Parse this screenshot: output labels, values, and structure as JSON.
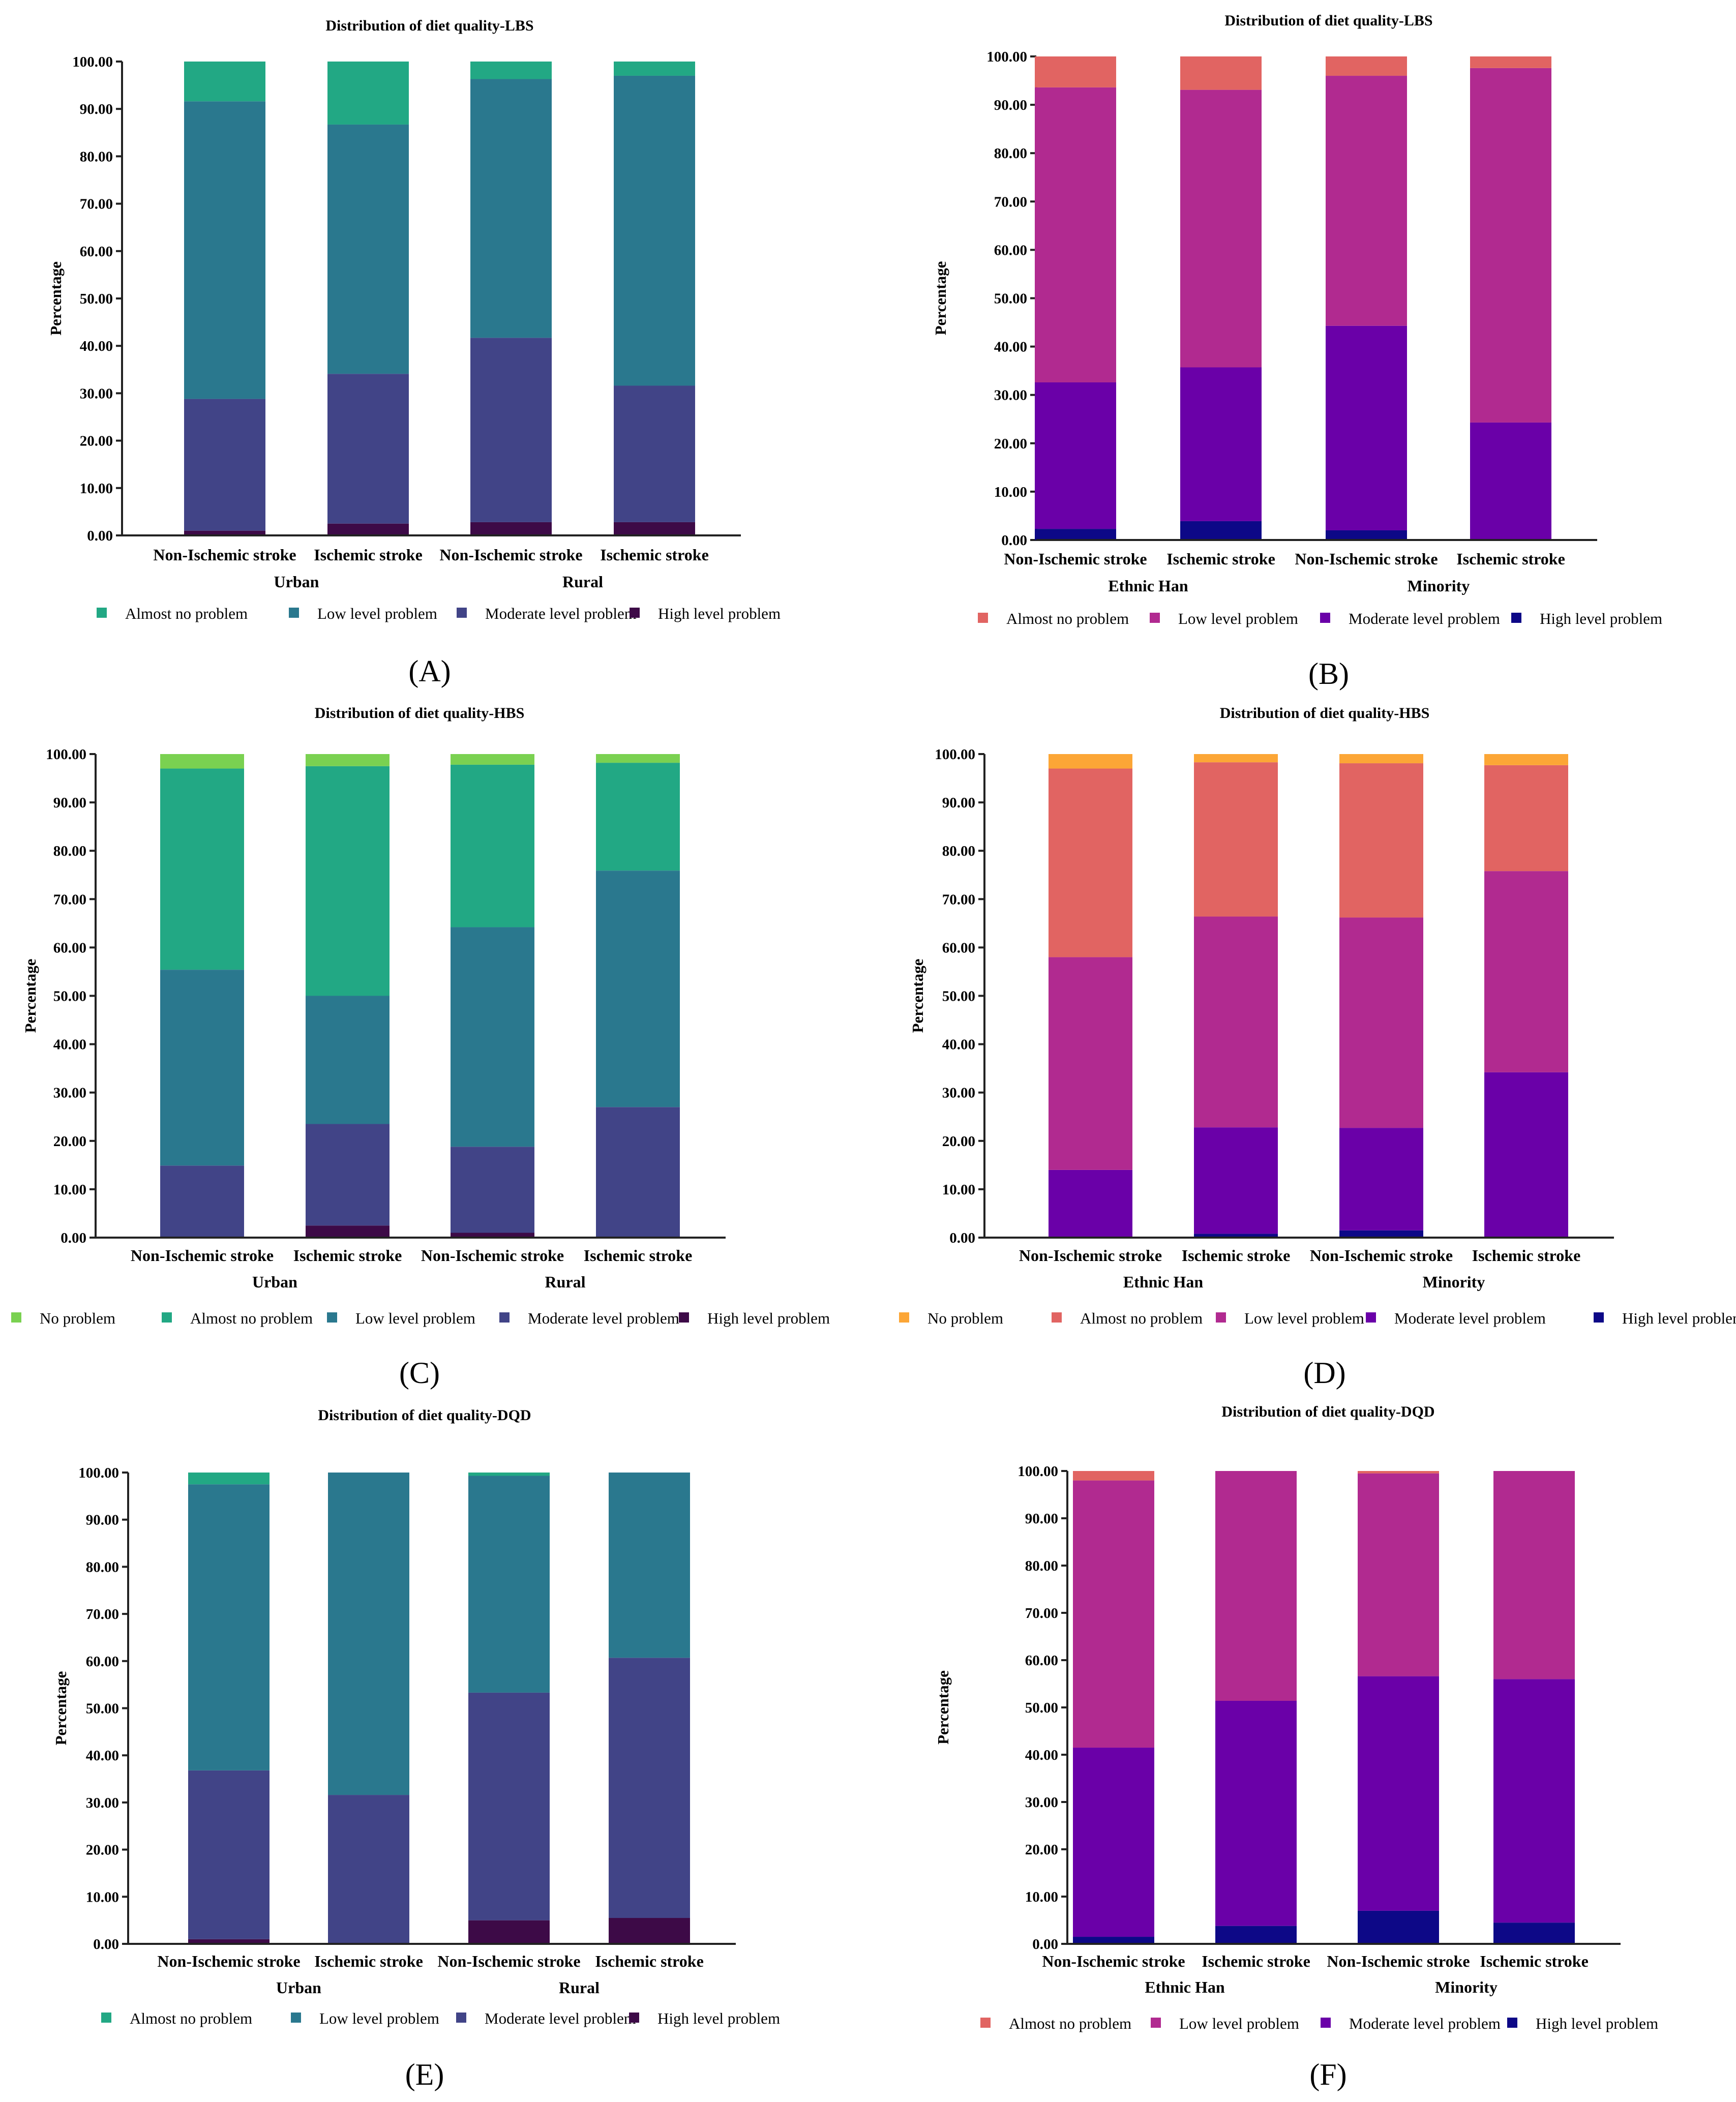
{
  "figure": {
    "name": "diet-quality-distribution"
  },
  "chart_data": [
    {
      "panel": "A",
      "type": "bar",
      "stacked": true,
      "title": "Distribution of diet quality-LBS",
      "ylabel": "Percentage",
      "xlabel": "",
      "ylim": [
        0,
        100
      ],
      "yticks": [
        "0.00",
        "10.00",
        "20.00",
        "30.00",
        "40.00",
        "50.00",
        "60.00",
        "70.00",
        "80.00",
        "90.00",
        "100.00"
      ],
      "categories": [
        "Non-Ischemic stroke",
        "Ischemic stroke",
        "Non-Ischemic stroke",
        "Ischemic stroke"
      ],
      "groups": [
        "Urban",
        "Rural"
      ],
      "series": [
        {
          "name": "High level problem",
          "color": "#3d0a47",
          "values": [
            1.0,
            2.5,
            2.8,
            2.8
          ]
        },
        {
          "name": "Moderate level problem",
          "color": "#414487",
          "values": [
            27.8,
            31.6,
            38.9,
            28.8
          ]
        },
        {
          "name": "Low level problem",
          "color": "#2a788e",
          "values": [
            62.8,
            52.6,
            54.6,
            65.4
          ]
        },
        {
          "name": "Almost no problem",
          "color": "#22a884",
          "values": [
            8.4,
            13.3,
            3.7,
            3.0
          ]
        }
      ]
    },
    {
      "panel": "B",
      "type": "bar",
      "stacked": true,
      "title": "Distribution of diet quality-LBS",
      "ylabel": "Percentage",
      "xlabel": "",
      "ylim": [
        0,
        100
      ],
      "yticks": [
        "0.00",
        "10.00",
        "20.00",
        "30.00",
        "40.00",
        "50.00",
        "60.00",
        "70.00",
        "80.00",
        "90.00",
        "100.00"
      ],
      "categories": [
        "Non-Ischemic stroke",
        "Ischemic stroke",
        "Non-Ischemic stroke",
        "Ischemic stroke"
      ],
      "groups": [
        "Ethnic Han",
        "Minority"
      ],
      "series": [
        {
          "name": "High level problem",
          "color": "#0d0887",
          "values": [
            2.3,
            3.9,
            2.0,
            0.0
          ]
        },
        {
          "name": "Moderate level problem",
          "color": "#6a00a8",
          "values": [
            30.3,
            31.8,
            42.3,
            24.3
          ]
        },
        {
          "name": "Low level problem",
          "color": "#b12a90",
          "values": [
            61.0,
            57.4,
            51.7,
            73.3
          ]
        },
        {
          "name": "Almost no problem",
          "color": "#e16462",
          "values": [
            6.4,
            6.9,
            4.0,
            2.4
          ]
        }
      ]
    },
    {
      "panel": "C",
      "type": "bar",
      "stacked": true,
      "title": "Distribution of diet quality-HBS",
      "ylabel": "Percentage",
      "xlabel": "",
      "ylim": [
        0,
        100
      ],
      "yticks": [
        "0.00",
        "10.00",
        "20.00",
        "30.00",
        "40.00",
        "50.00",
        "60.00",
        "70.00",
        "80.00",
        "90.00",
        "100.00"
      ],
      "categories": [
        "Non-Ischemic stroke",
        "Ischemic stroke",
        "Non-Ischemic stroke",
        "Ischemic stroke"
      ],
      "groups": [
        "Urban",
        "Rural"
      ],
      "series": [
        {
          "name": "High level problem",
          "color": "#3d0a47",
          "values": [
            0.0,
            2.5,
            1.0,
            0.0
          ]
        },
        {
          "name": "Moderate level problem",
          "color": "#414487",
          "values": [
            14.9,
            21.0,
            17.8,
            27.0
          ]
        },
        {
          "name": "Low level problem",
          "color": "#2a788e",
          "values": [
            40.5,
            26.5,
            45.4,
            48.9
          ]
        },
        {
          "name": "Almost no problem",
          "color": "#22a884",
          "values": [
            41.6,
            47.5,
            33.6,
            22.3
          ]
        },
        {
          "name": "No problem",
          "color": "#7ad151",
          "values": [
            3.0,
            2.5,
            2.2,
            1.8
          ]
        }
      ]
    },
    {
      "panel": "D",
      "type": "bar",
      "stacked": true,
      "title": "Distribution of diet quality-HBS",
      "ylabel": "Percentage",
      "xlabel": "",
      "ylim": [
        0,
        100
      ],
      "yticks": [
        "0.00",
        "10.00",
        "20.00",
        "30.00",
        "40.00",
        "50.00",
        "60.00",
        "70.00",
        "80.00",
        "90.00",
        "100.00"
      ],
      "categories": [
        "Non-Ischemic stroke",
        "Ischemic stroke",
        "Non-Ischemic stroke",
        "Ischemic stroke"
      ],
      "groups": [
        "Ethnic Han",
        "Minority"
      ],
      "series": [
        {
          "name": "High level problem",
          "color": "#0d0887",
          "values": [
            0.0,
            0.8,
            1.5,
            0.0
          ]
        },
        {
          "name": "Moderate level problem",
          "color": "#6a00a8",
          "values": [
            14.0,
            22.0,
            21.2,
            34.2
          ]
        },
        {
          "name": "Low level problem",
          "color": "#b12a90",
          "values": [
            44.0,
            43.6,
            43.5,
            41.6
          ]
        },
        {
          "name": "Almost no problem",
          "color": "#e16462",
          "values": [
            39.0,
            31.9,
            31.9,
            21.9
          ]
        },
        {
          "name": "No problem",
          "color": "#fca636",
          "values": [
            3.0,
            1.7,
            1.9,
            2.3
          ]
        }
      ]
    },
    {
      "panel": "E",
      "type": "bar",
      "stacked": true,
      "title": "Distribution of diet quality-DQD",
      "ylabel": "Percentage",
      "xlabel": "",
      "ylim": [
        0,
        100
      ],
      "yticks": [
        "0.00",
        "10.00",
        "20.00",
        "30.00",
        "40.00",
        "50.00",
        "60.00",
        "70.00",
        "80.00",
        "90.00",
        "100.00"
      ],
      "categories": [
        "Non-Ischemic stroke",
        "Ischemic stroke",
        "Non-Ischemic stroke",
        "Ischemic stroke"
      ],
      "groups": [
        "Urban",
        "Rural"
      ],
      "series": [
        {
          "name": "High level problem",
          "color": "#3d0a47",
          "values": [
            1.0,
            0.0,
            5.0,
            5.5
          ]
        },
        {
          "name": "Moderate level problem",
          "color": "#414487",
          "values": [
            35.8,
            31.6,
            48.3,
            55.2
          ]
        },
        {
          "name": "Low level problem",
          "color": "#2a788e",
          "values": [
            60.7,
            68.4,
            46.0,
            39.3
          ]
        },
        {
          "name": "Almost no problem",
          "color": "#22a884",
          "values": [
            2.5,
            0.0,
            0.7,
            0.0
          ]
        }
      ]
    },
    {
      "panel": "F",
      "type": "bar",
      "stacked": true,
      "title": "Distribution of diet quality-DQD",
      "ylabel": "Percentage",
      "xlabel": "",
      "ylim": [
        0,
        100
      ],
      "yticks": [
        "0.00",
        "10.00",
        "20.00",
        "30.00",
        "40.00",
        "50.00",
        "60.00",
        "70.00",
        "80.00",
        "90.00",
        "100.00"
      ],
      "categories": [
        "Non-Ischemic stroke",
        "Ischemic stroke",
        "Non-Ischemic stroke",
        "Ischemic stroke"
      ],
      "groups": [
        "Ethnic Han",
        "Minority"
      ],
      "series": [
        {
          "name": "High level problem",
          "color": "#0d0887",
          "values": [
            1.5,
            3.8,
            7.0,
            4.5
          ]
        },
        {
          "name": "Moderate level problem",
          "color": "#6a00a8",
          "values": [
            40.0,
            47.6,
            49.6,
            51.5
          ]
        },
        {
          "name": "Low level problem",
          "color": "#b12a90",
          "values": [
            56.5,
            48.6,
            42.9,
            44.0
          ]
        },
        {
          "name": "Almost no problem",
          "color": "#e16462",
          "values": [
            2.0,
            0.0,
            0.5,
            0.0
          ]
        }
      ]
    }
  ],
  "legends": [
    [
      "Almost no problem",
      "Low level problem",
      "Moderate level problem",
      "High level problem"
    ],
    [
      "Almost no problem",
      "Low level problem",
      "Moderate level problem",
      "High level problem"
    ],
    [
      "No problem",
      "Almost no problem",
      "Low level problem",
      "Moderate level problem",
      "High level problem"
    ],
    [
      "No problem",
      "Almost no problem",
      "Low level problem",
      "Moderate level problem",
      "High level problem"
    ],
    [
      "Almost no problem",
      "Low level problem",
      "Moderate level problem",
      "High level problem"
    ],
    [
      "Almost no problem",
      "Low level problem",
      "Moderate level problem",
      "High level problem"
    ]
  ],
  "panel_labels": [
    "(A)",
    "(B)",
    "(C)",
    "(D)",
    "(E)",
    "(F)"
  ]
}
